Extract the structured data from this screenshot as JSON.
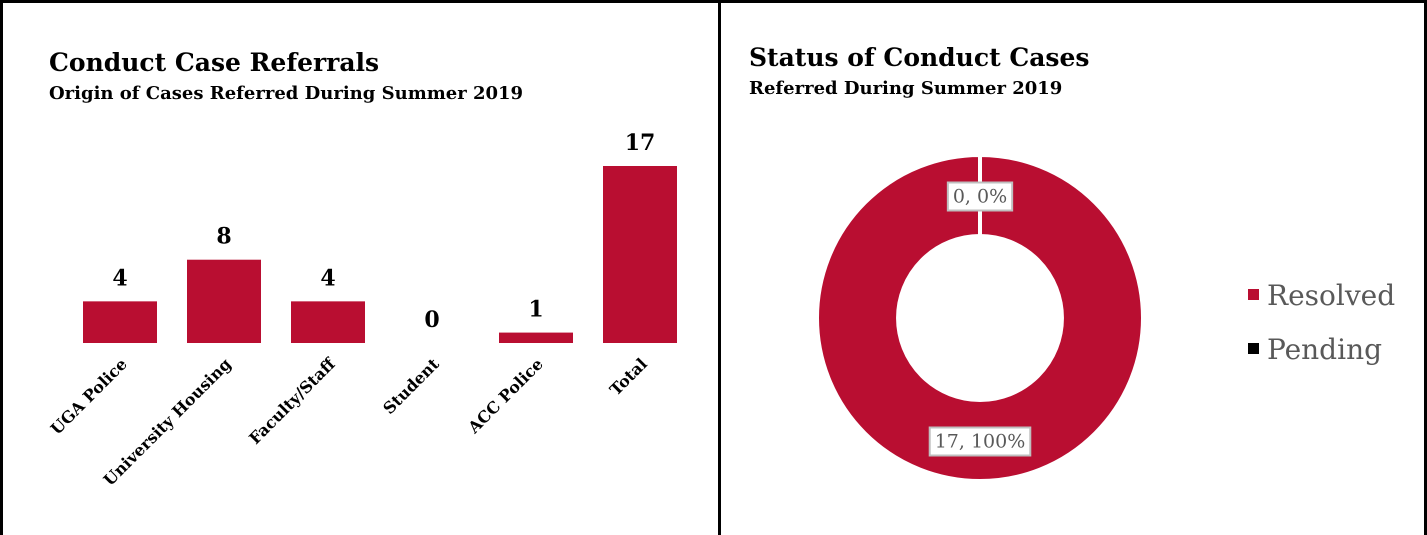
{
  "chart_data": [
    {
      "type": "bar",
      "title": "Conduct Case Referrals",
      "subtitle": "Origin of Cases Referred During Summer 2019",
      "categories": [
        "UGA Police",
        "University Housing",
        "Faculty/Staff",
        "Student",
        "ACC Police",
        "Total"
      ],
      "values": [
        4,
        8,
        4,
        0,
        1,
        17
      ],
      "color": "#b90e31"
    },
    {
      "type": "donut",
      "title": "Status of Conduct Cases",
      "subtitle": "Referred During Summer 2019",
      "categories": [
        "Resolved",
        "Pending"
      ],
      "values": [
        17,
        0
      ],
      "value_labels": [
        "17, 100%",
        "0, 0%"
      ],
      "colors": [
        "#b90e31",
        "#000000"
      ],
      "legend": "right"
    }
  ]
}
